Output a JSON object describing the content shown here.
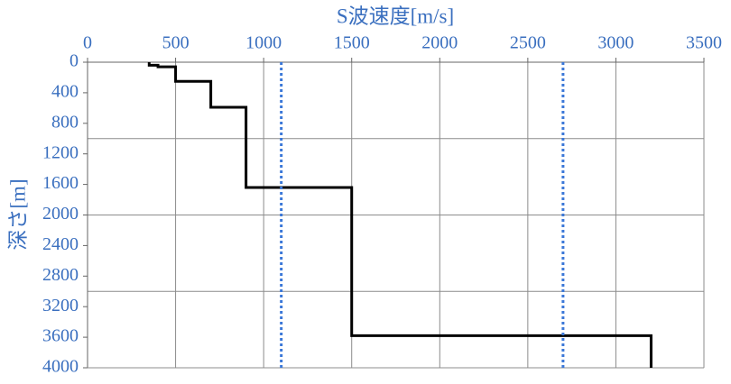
{
  "chart_data": {
    "type": "line",
    "xlabel": "S波速度[m/s]",
    "ylabel": "深さ[m]",
    "xlim": [
      0,
      3500
    ],
    "xticks": [
      0,
      500,
      1000,
      1500,
      2000,
      2500,
      3000,
      3500
    ],
    "ylim": [
      0,
      4000
    ],
    "yticks": [
      0,
      400,
      800,
      1200,
      1600,
      2000,
      2400,
      2800,
      3200,
      3600,
      4000
    ],
    "y_inverted": true,
    "x_axis_position": "top",
    "xgrid": true,
    "ygrid": [
      1000,
      2000,
      3000
    ],
    "series": [
      {
        "color": "#000000",
        "style": "solid",
        "x": [
          350,
          350,
          400,
          400,
          500,
          500,
          700,
          700,
          900,
          900,
          1500,
          1500,
          3200,
          3200
        ],
        "values": [
          0,
          40,
          40,
          60,
          60,
          250,
          250,
          590,
          590,
          1640,
          1640,
          3580,
          3580,
          4000
        ]
      },
      {
        "color": "#3b78d8",
        "style": "dotted",
        "x": [
          1100,
          1100
        ],
        "values": [
          0,
          4000
        ]
      },
      {
        "color": "#3b78d8",
        "style": "dotted",
        "x": [
          2700,
          2700
        ],
        "values": [
          0,
          4000
        ]
      }
    ]
  }
}
